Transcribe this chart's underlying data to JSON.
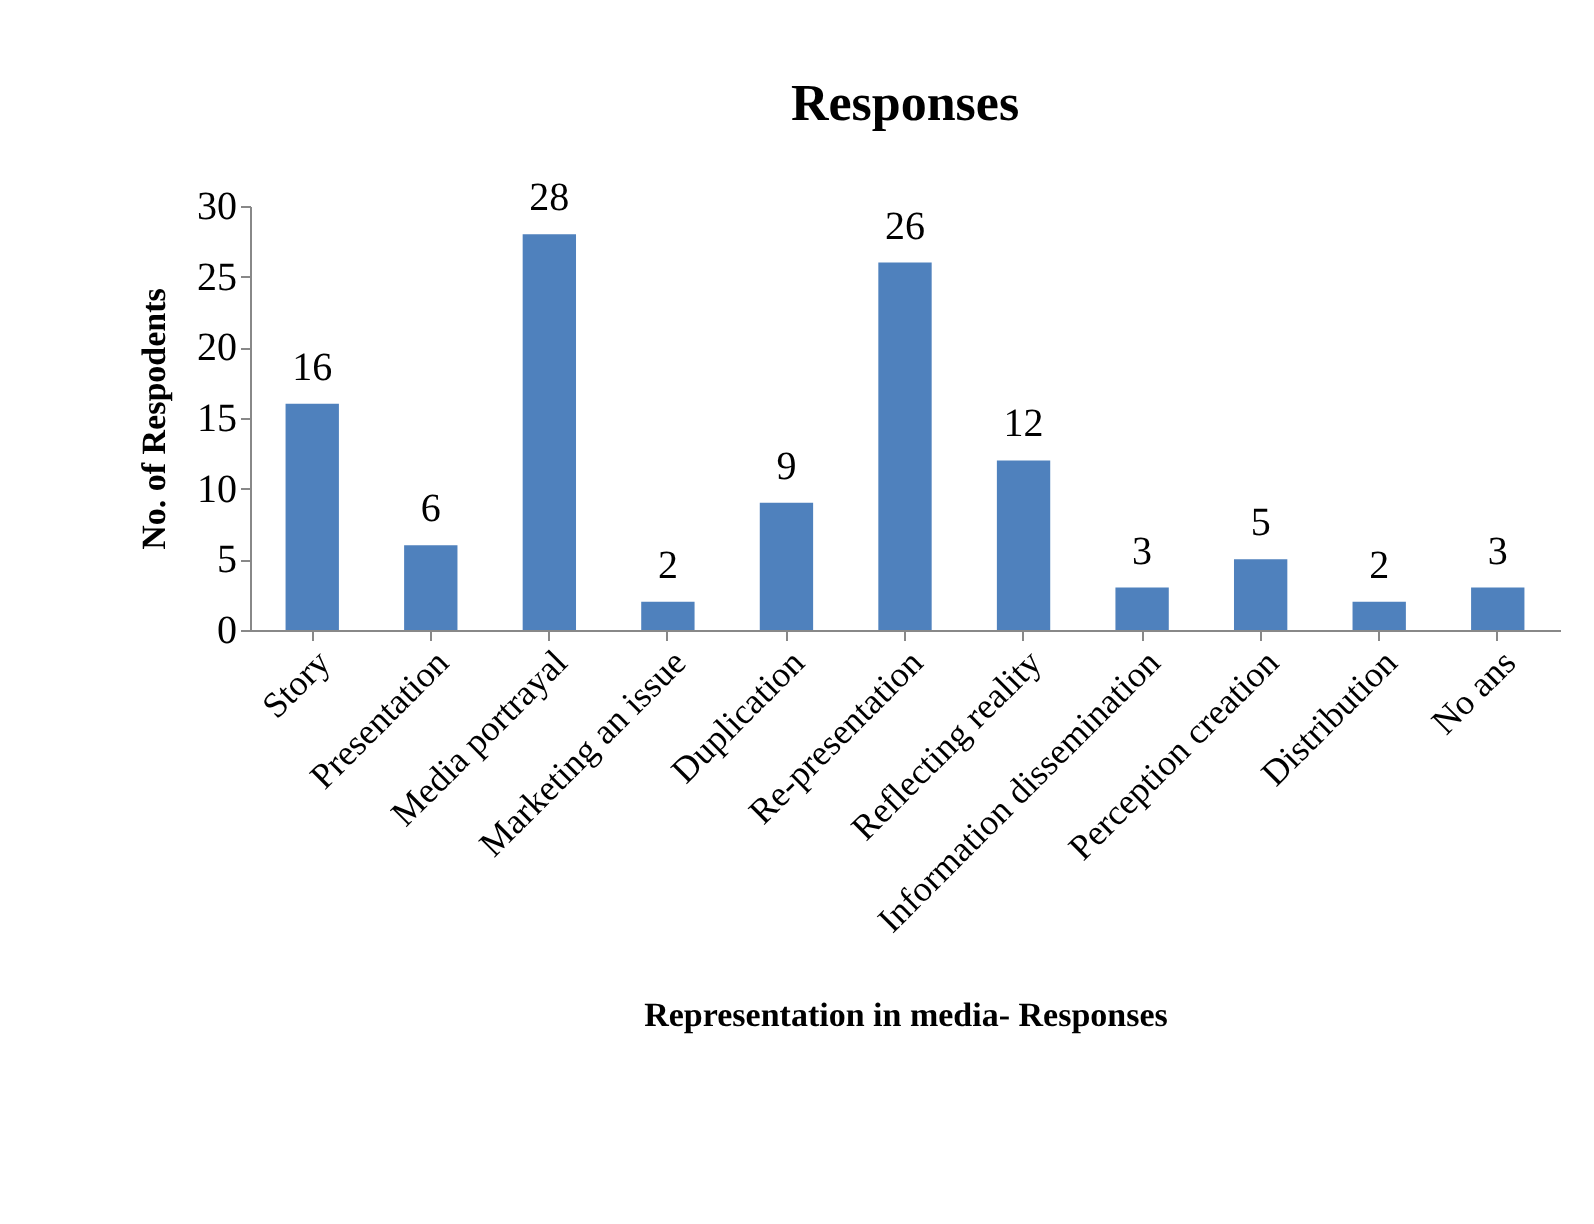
{
  "chart_data": {
    "type": "bar",
    "title": "Responses",
    "xlabel": "Representation in media- Responses",
    "ylabel": "No. of Respodents",
    "categories": [
      "Story",
      "Presentation",
      "Media portrayal",
      "Marketing an issue",
      "Duplication",
      "Re-presentation",
      "Reflecting reality",
      "Information dissemination",
      "Perception creation",
      "Distribution",
      "No ans"
    ],
    "values": [
      16,
      6,
      28,
      2,
      9,
      26,
      12,
      3,
      5,
      2,
      3
    ],
    "color": "#4f81bd",
    "ylim": [
      0,
      30
    ],
    "yticks": [
      0,
      5,
      10,
      15,
      20,
      25,
      30
    ],
    "grid": false,
    "data_labels": true
  }
}
